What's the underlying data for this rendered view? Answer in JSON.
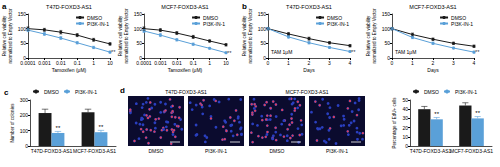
{
  "chart_data": [
    {
      "type": "line",
      "panel": "a",
      "title": "T47D-FOXD3-AS1",
      "log": "x",
      "x_label": "Tamoxifen (μM)",
      "y_label": "Relative cell viability\nnormalized to Empty Vector",
      "x": [
        0.0001,
        0.001,
        0.01,
        0.1,
        1,
        10
      ],
      "xlim": [
        0.0001,
        10
      ],
      "xticks": [
        0.0001,
        0.001,
        0.01,
        0.1,
        1,
        10
      ],
      "ylim": [
        0,
        150
      ],
      "yticks": [
        0,
        50,
        100,
        150
      ],
      "grid": false,
      "legend": "upper right",
      "series": [
        {
          "name": "DMSO",
          "color": "#1a1a1a",
          "marker": "circle",
          "values": [
            100,
            96,
            88,
            78,
            62,
            48
          ],
          "errors": [
            6,
            5,
            6,
            5,
            5,
            4
          ]
        },
        {
          "name": "PI3K-IN-1",
          "color": "#5aa0d8",
          "marker": "circle",
          "values": [
            95,
            82,
            68,
            52,
            36,
            20
          ],
          "errors": [
            5,
            5,
            5,
            4,
            4,
            3
          ],
          "annotation": "**"
        }
      ]
    },
    {
      "type": "line",
      "title": "MCF7-FOXD3-AS1",
      "log": "x",
      "x_label": "Tamoxifen (μM)",
      "y_label": "Relative cell viability\nnormalized to Empty Vector",
      "x": [
        0.0001,
        0.001,
        0.01,
        0.1,
        1,
        10
      ],
      "xlim": [
        0.0001,
        10
      ],
      "xticks": [
        0.0001,
        0.001,
        0.01,
        0.1,
        1,
        10
      ],
      "ylim": [
        0,
        150
      ],
      "yticks": [
        0,
        50,
        100,
        150
      ],
      "grid": false,
      "legend": "upper right",
      "series": [
        {
          "name": "DMSO",
          "color": "#1a1a1a",
          "marker": "circle",
          "values": [
            100,
            95,
            85,
            72,
            58,
            45
          ],
          "errors": [
            6,
            5,
            5,
            5,
            4,
            4
          ]
        },
        {
          "name": "PI3K-IN-1",
          "color": "#5aa0d8",
          "marker": "circle",
          "values": [
            92,
            78,
            62,
            47,
            33,
            18
          ],
          "errors": [
            5,
            5,
            4,
            4,
            3,
            3
          ],
          "annotation": "**"
        }
      ]
    },
    {
      "type": "line",
      "panel": "b",
      "title": "T47D-FOXD3-AS1",
      "annotation": "TAM 1μM",
      "x_label": "Days",
      "y_label": "Relative cell viability\nnormalized to Empty Vector",
      "x": [
        0,
        1,
        2,
        3,
        4
      ],
      "xlim": [
        0,
        4
      ],
      "xticks": [
        0,
        1,
        2,
        3,
        4
      ],
      "ylim": [
        0,
        150
      ],
      "yticks": [
        0,
        50,
        100,
        150
      ],
      "grid": false,
      "legend": "upper right",
      "series": [
        {
          "name": "DMSO",
          "color": "#1a1a1a",
          "marker": "circle",
          "values": [
            100,
            82,
            66,
            52,
            42
          ],
          "errors": [
            4,
            5,
            5,
            4,
            4
          ]
        },
        {
          "name": "PI3K-IN-1",
          "color": "#5aa0d8",
          "marker": "circle",
          "values": [
            100,
            72,
            52,
            36,
            22
          ],
          "errors": [
            4,
            4,
            4,
            3,
            3
          ],
          "annotation": "**"
        }
      ]
    },
    {
      "type": "line",
      "title": "MCF7-FOXD3-AS1",
      "annotation": "TAM 1μM",
      "x_label": "Days",
      "y_label": "Relative cell viability\nnormalized to Empty Vector",
      "x": [
        0,
        1,
        2,
        3,
        4
      ],
      "xlim": [
        0,
        4
      ],
      "xticks": [
        0,
        1,
        2,
        3,
        4
      ],
      "ylim": [
        0,
        150
      ],
      "yticks": [
        0,
        50,
        100,
        150
      ],
      "grid": false,
      "legend": "upper right",
      "series": [
        {
          "name": "DMSO",
          "color": "#1a1a1a",
          "marker": "circle",
          "values": [
            100,
            80,
            64,
            50,
            40
          ],
          "errors": [
            4,
            5,
            4,
            4,
            4
          ]
        },
        {
          "name": "PI3K-IN-1",
          "color": "#5aa0d8",
          "marker": "circle",
          "values": [
            100,
            70,
            50,
            34,
            20
          ],
          "errors": [
            4,
            4,
            4,
            3,
            3
          ],
          "annotation": "**"
        }
      ]
    },
    {
      "type": "bar",
      "panel": "c",
      "y_label": "Number of colonies",
      "categories": [
        "T47D-FOXD3-AS1",
        "MCF7-FOXD3-AS1"
      ],
      "ylim": [
        0,
        300
      ],
      "yticks": [
        0,
        100,
        200,
        300
      ],
      "grid": false,
      "legend": "top",
      "series": [
        {
          "name": "DMSO",
          "color": "#1a1a1a",
          "values": [
            215,
            220
          ],
          "errors": [
            25,
            20
          ]
        },
        {
          "name": "PI3K-IN-1",
          "color": "#5aa0d8",
          "values": [
            85,
            90
          ],
          "errors": [
            10,
            12
          ],
          "annotation": "**"
        }
      ]
    },
    {
      "type": "bar",
      "y_label": "Percentage of EdU+ cells",
      "categories": [
        "T47D-FOXD3-AS1",
        "MCF7-FOXD3-AS1"
      ],
      "ylim": [
        0,
        50
      ],
      "yticks": [
        0,
        10,
        20,
        30,
        40,
        50
      ],
      "grid": false,
      "legend": "top",
      "series": [
        {
          "name": "DMSO",
          "color": "#1a1a1a",
          "values": [
            40,
            44
          ],
          "errors": [
            3,
            3
          ]
        },
        {
          "name": "PI3K-IN-1",
          "color": "#5aa0d8",
          "values": [
            29,
            30
          ],
          "errors": [
            2,
            2
          ],
          "annotation": "**"
        }
      ]
    }
  ],
  "image_panel": {
    "panel": "d",
    "groups": [
      {
        "title": "T47D-FOXD3-AS1",
        "images": [
          "DMSO",
          "PI3K-IN-1"
        ]
      },
      {
        "title": "MCF7-FOXD3-AS1",
        "images": [
          "DMSO",
          "PI3K-IN-1"
        ]
      }
    ]
  }
}
